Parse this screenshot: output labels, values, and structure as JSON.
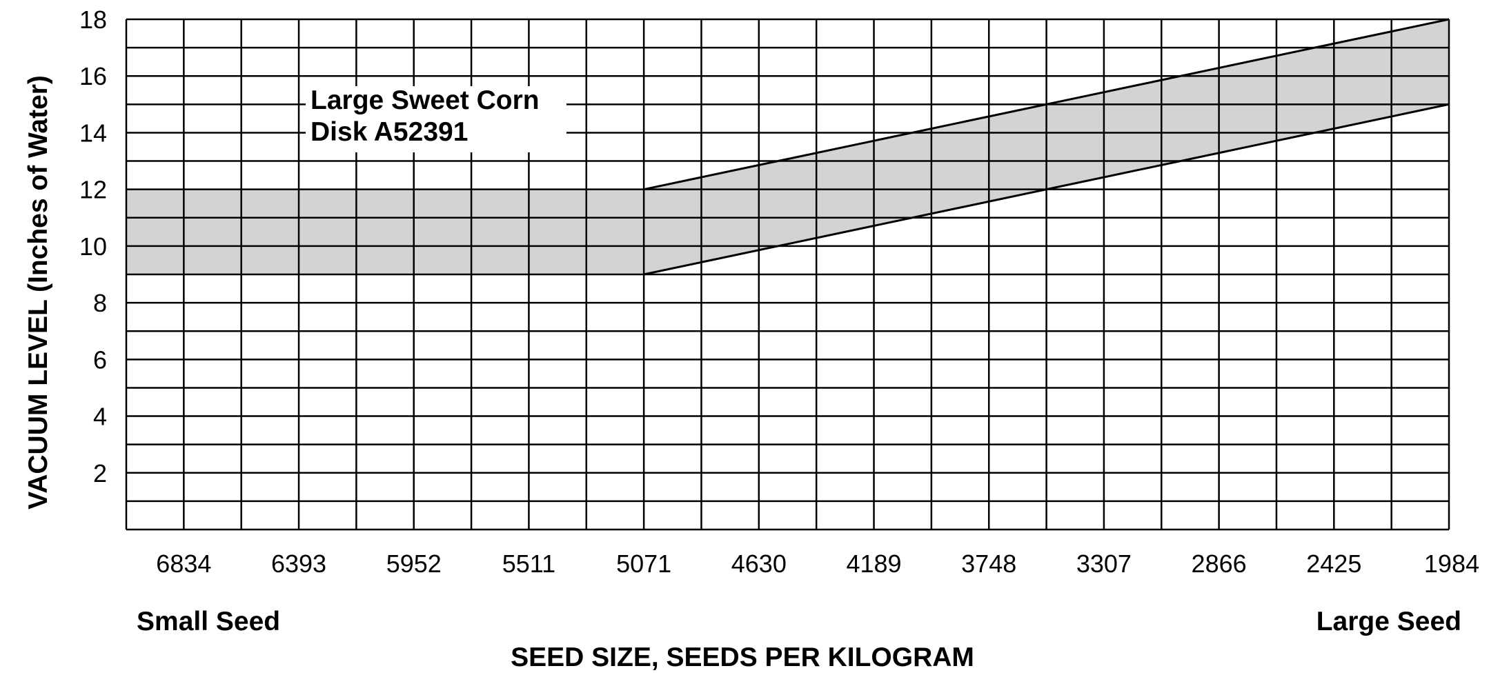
{
  "chart_data": {
    "type": "area",
    "title": "",
    "xlabel": "SEED SIZE, SEEDS PER KILOGRAM",
    "ylabel": "VACUUM LEVEL (Inches of Water)",
    "x_categories": [
      "6834",
      "6393",
      "5952",
      "5511",
      "5071",
      "4630",
      "4189",
      "3748",
      "3307",
      "2866",
      "2425",
      "1984"
    ],
    "x_end_labels": {
      "left": "Small Seed",
      "right": "Large Seed"
    },
    "y_ticks": [
      "2",
      "4",
      "6",
      "8",
      "10",
      "12",
      "14",
      "16",
      "18"
    ],
    "ylim": [
      0,
      18
    ],
    "xlim": [
      7055,
      1984
    ],
    "grid": true,
    "annotation": {
      "lines": [
        "Large Sweet Corn",
        "Disk A52391"
      ]
    },
    "series": [
      {
        "name": "Large Sweet Corn Disk A52391",
        "x": [
          7055,
          5071,
          1984
        ],
        "upper": [
          12,
          12,
          18
        ],
        "lower": [
          9,
          9,
          15
        ]
      }
    ],
    "colors": {
      "band": "#d3d3d3",
      "grid": "#000000"
    }
  }
}
